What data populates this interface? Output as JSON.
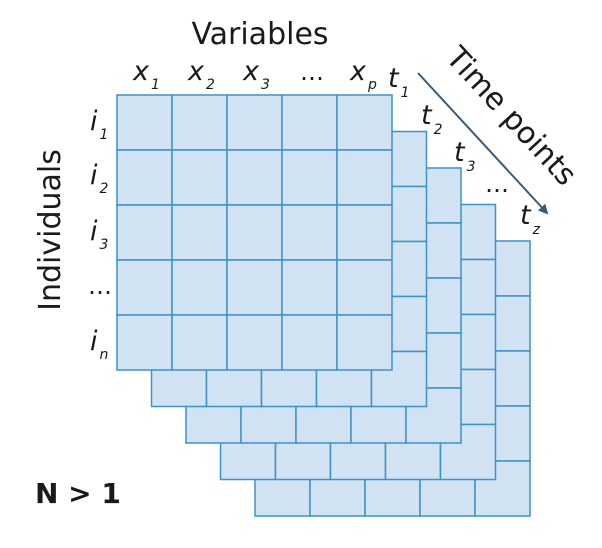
{
  "title_variables": "Variables",
  "label_individuals": "Individuals",
  "label_time_points": "Time points",
  "variables": [
    {
      "base": "x",
      "sub": "1"
    },
    {
      "base": "x",
      "sub": "2"
    },
    {
      "base": "x",
      "sub": "3"
    },
    {
      "base": "…",
      "sub": ""
    },
    {
      "base": "x",
      "sub": "p"
    }
  ],
  "individuals": [
    {
      "base": "i",
      "sub": "1"
    },
    {
      "base": "i",
      "sub": "2"
    },
    {
      "base": "i",
      "sub": "3"
    },
    {
      "base": "…",
      "sub": ""
    },
    {
      "base": "i",
      "sub": "n"
    }
  ],
  "time_points": [
    {
      "base": "t",
      "sub": "1"
    },
    {
      "base": "t",
      "sub": "2"
    },
    {
      "base": "t",
      "sub": "3"
    },
    {
      "base": "…",
      "sub": ""
    },
    {
      "base": "t",
      "sub": "z"
    }
  ],
  "n_label": "N > 1",
  "colors": {
    "cell_fill": "#d1e2f3",
    "cell_stroke": "#3d92c6",
    "arrow": "#3a5a78",
    "text": "#1a1a1a"
  }
}
